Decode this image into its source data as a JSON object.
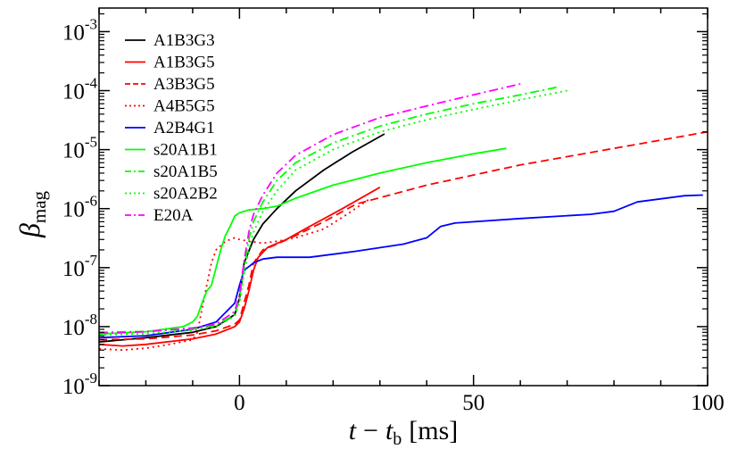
{
  "chart_data": {
    "type": "line",
    "title": "",
    "xlabel": {
      "var": "t",
      "op": "−",
      "var2": "t",
      "sub": "b",
      "unit": "[ms]"
    },
    "ylabel": {
      "symbol": "β",
      "sub": "mag"
    },
    "xlim": [
      -30,
      100
    ],
    "ylim_log10": [
      -9,
      -2.6
    ],
    "yscale": "log",
    "x_ticks": [
      0,
      50,
      100
    ],
    "x_tick_labels": [
      "0",
      "50",
      "100"
    ],
    "y_ticks": [
      {
        "base": "10",
        "exp": "-3",
        "pow": -3
      },
      {
        "base": "10",
        "exp": "-4",
        "pow": -4
      },
      {
        "base": "10",
        "exp": "-5",
        "pow": -5
      },
      {
        "base": "10",
        "exp": "-6",
        "pow": -6
      },
      {
        "base": "10",
        "exp": "-7",
        "pow": -7
      },
      {
        "base": "10",
        "exp": "-8",
        "pow": -8
      },
      {
        "base": "10",
        "exp": "-9",
        "pow": -9
      }
    ],
    "legend_position": "top-left",
    "series": [
      {
        "name": "A1B3G3",
        "color": "#000000",
        "dash": "solid",
        "points": [
          [
            -30,
            5.5e-09
          ],
          [
            -20,
            6.5e-09
          ],
          [
            -10,
            8e-09
          ],
          [
            -5,
            1e-08
          ],
          [
            -1,
            1.6e-08
          ],
          [
            0,
            3e-08
          ],
          [
            1,
            1.2e-07
          ],
          [
            3,
            3e-07
          ],
          [
            5,
            5.5e-07
          ],
          [
            8,
            1e-06
          ],
          [
            12,
            2e-06
          ],
          [
            18,
            4.5e-06
          ],
          [
            24,
            9e-06
          ],
          [
            31,
            1.85e-05
          ]
        ]
      },
      {
        "name": "A1B3G5",
        "color": "#ff0000",
        "dash": "solid",
        "points": [
          [
            -30,
            5e-09
          ],
          [
            -25,
            4.7e-09
          ],
          [
            -20,
            5e-09
          ],
          [
            -10,
            6.2e-09
          ],
          [
            -5,
            7.5e-09
          ],
          [
            -1,
            1e-08
          ],
          [
            0,
            1.2e-08
          ],
          [
            1,
            2e-08
          ],
          [
            2,
            4e-08
          ],
          [
            3,
            9e-08
          ],
          [
            4,
            1.5e-07
          ],
          [
            6,
            2.2e-07
          ],
          [
            10,
            3e-07
          ],
          [
            15,
            5e-07
          ],
          [
            22,
            1e-06
          ],
          [
            30,
            2.3e-06
          ]
        ]
      },
      {
        "name": "A3B3G5",
        "color": "#ff0000",
        "dash": "dashed",
        "points": [
          [
            -30,
            6e-09
          ],
          [
            -20,
            6.2e-09
          ],
          [
            -10,
            7.2e-09
          ],
          [
            -5,
            8.5e-09
          ],
          [
            -1,
            1.1e-08
          ],
          [
            0,
            1.3e-08
          ],
          [
            2,
            5e-08
          ],
          [
            3,
            1.2e-07
          ],
          [
            5,
            2e-07
          ],
          [
            8,
            2.5e-07
          ],
          [
            12,
            3.5e-07
          ],
          [
            18,
            6e-07
          ],
          [
            25,
            1.2e-06
          ],
          [
            40,
            2.5e-06
          ],
          [
            60,
            5.5e-06
          ],
          [
            80,
            1.05e-05
          ],
          [
            100,
            2e-05
          ]
        ]
      },
      {
        "name": "A4B5G5",
        "color": "#ff0000",
        "dash": "dotted",
        "points": [
          [
            -30,
            4.2e-09
          ],
          [
            -25,
            4e-09
          ],
          [
            -20,
            4.3e-09
          ],
          [
            -15,
            5e-09
          ],
          [
            -10,
            6e-09
          ],
          [
            -9,
            8e-09
          ],
          [
            -8,
            2e-08
          ],
          [
            -7,
            5e-08
          ],
          [
            -6,
            1.2e-07
          ],
          [
            -5,
            2e-07
          ],
          [
            -3,
            2.8e-07
          ],
          [
            -1,
            3.2e-07
          ],
          [
            0,
            3e-07
          ],
          [
            2,
            2.8e-07
          ],
          [
            5,
            2.6e-07
          ],
          [
            8,
            2.8e-07
          ],
          [
            12,
            3.2e-07
          ],
          [
            18,
            4.5e-07
          ],
          [
            23,
            8e-07
          ],
          [
            28,
            1.5e-06
          ]
        ]
      },
      {
        "name": "A2B4G1",
        "color": "#0000ff",
        "dash": "solid",
        "points": [
          [
            -30,
            6.5e-09
          ],
          [
            -20,
            7e-09
          ],
          [
            -10,
            9e-09
          ],
          [
            -5,
            1.2e-08
          ],
          [
            -1,
            2.5e-08
          ],
          [
            0,
            5e-08
          ],
          [
            1,
            9e-08
          ],
          [
            3,
            1.2e-07
          ],
          [
            5,
            1.4e-07
          ],
          [
            8,
            1.5e-07
          ],
          [
            15,
            1.5e-07
          ],
          [
            25,
            1.9e-07
          ],
          [
            35,
            2.5e-07
          ],
          [
            40,
            3.2e-07
          ],
          [
            43,
            5e-07
          ],
          [
            46,
            5.7e-07
          ],
          [
            60,
            6.8e-07
          ],
          [
            75,
            8e-07
          ],
          [
            80,
            9e-07
          ],
          [
            85,
            1.3e-06
          ],
          [
            95,
            1.65e-06
          ],
          [
            99,
            1.7e-06
          ]
        ]
      },
      {
        "name": "s20A1B1",
        "color": "#00ff00",
        "dash": "solid",
        "points": [
          [
            -30,
            7.5e-09
          ],
          [
            -20,
            8.2e-09
          ],
          [
            -12,
            1e-08
          ],
          [
            -10,
            1.2e-08
          ],
          [
            -9,
            1.5e-08
          ],
          [
            -8,
            2.5e-08
          ],
          [
            -7,
            4e-08
          ],
          [
            -6,
            5e-08
          ],
          [
            -5,
            1e-07
          ],
          [
            -4,
            2e-07
          ],
          [
            -3,
            3.5e-07
          ],
          [
            -2,
            5e-07
          ],
          [
            -1,
            7.5e-07
          ],
          [
            0,
            8.5e-07
          ],
          [
            2,
            9.5e-07
          ],
          [
            5,
            1e-06
          ],
          [
            8,
            1.1e-06
          ],
          [
            12,
            1.5e-06
          ],
          [
            20,
            2.5e-06
          ],
          [
            30,
            4e-06
          ],
          [
            40,
            6e-06
          ],
          [
            50,
            8.5e-06
          ],
          [
            57,
            1.05e-05
          ]
        ]
      },
      {
        "name": "s20A1B5",
        "color": "#00ff00",
        "dash": "dashdot",
        "points": [
          [
            -30,
            8e-09
          ],
          [
            -20,
            8.3e-09
          ],
          [
            -10,
            9.2e-09
          ],
          [
            -5,
            1.05e-08
          ],
          [
            -1,
            1.6e-08
          ],
          [
            0,
            3e-08
          ],
          [
            1,
            1e-07
          ],
          [
            2,
            3e-07
          ],
          [
            3,
            6e-07
          ],
          [
            5,
            1.3e-06
          ],
          [
            8,
            3e-06
          ],
          [
            12,
            6e-06
          ],
          [
            20,
            1.3e-05
          ],
          [
            30,
            2.5e-05
          ],
          [
            40,
            4e-05
          ],
          [
            50,
            6e-05
          ],
          [
            60,
            8.5e-05
          ],
          [
            68,
            0.000115
          ]
        ]
      },
      {
        "name": "s20A2B2",
        "color": "#00ff00",
        "dash": "dotted",
        "points": [
          [
            -30,
            7.2e-09
          ],
          [
            -20,
            7.6e-09
          ],
          [
            -10,
            8.7e-09
          ],
          [
            -5,
            1e-08
          ],
          [
            -1,
            1.5e-08
          ],
          [
            0,
            2.5e-08
          ],
          [
            1,
            8e-08
          ],
          [
            2,
            2e-07
          ],
          [
            3,
            4e-07
          ],
          [
            5,
            9e-07
          ],
          [
            8,
            2e-06
          ],
          [
            12,
            4.5e-06
          ],
          [
            20,
            1e-05
          ],
          [
            30,
            2e-05
          ],
          [
            40,
            3.2e-05
          ],
          [
            50,
            4.8e-05
          ],
          [
            60,
            7e-05
          ],
          [
            70,
            0.0001
          ]
        ]
      },
      {
        "name": "E20A",
        "color": "#ff00ff",
        "dash": "dashdot",
        "points": [
          [
            -30,
            7.8e-09
          ],
          [
            -20,
            8.2e-09
          ],
          [
            -10,
            9.5e-09
          ],
          [
            -5,
            1.1e-08
          ],
          [
            -1,
            1.8e-08
          ],
          [
            0,
            3.5e-08
          ],
          [
            1,
            1.3e-07
          ],
          [
            2,
            4e-07
          ],
          [
            3,
            8e-07
          ],
          [
            5,
            1.7e-06
          ],
          [
            8,
            4e-06
          ],
          [
            12,
            8e-06
          ],
          [
            20,
            1.8e-05
          ],
          [
            30,
            3.5e-05
          ],
          [
            40,
            5.5e-05
          ],
          [
            50,
            8.5e-05
          ],
          [
            60,
            0.00013
          ]
        ]
      }
    ]
  }
}
